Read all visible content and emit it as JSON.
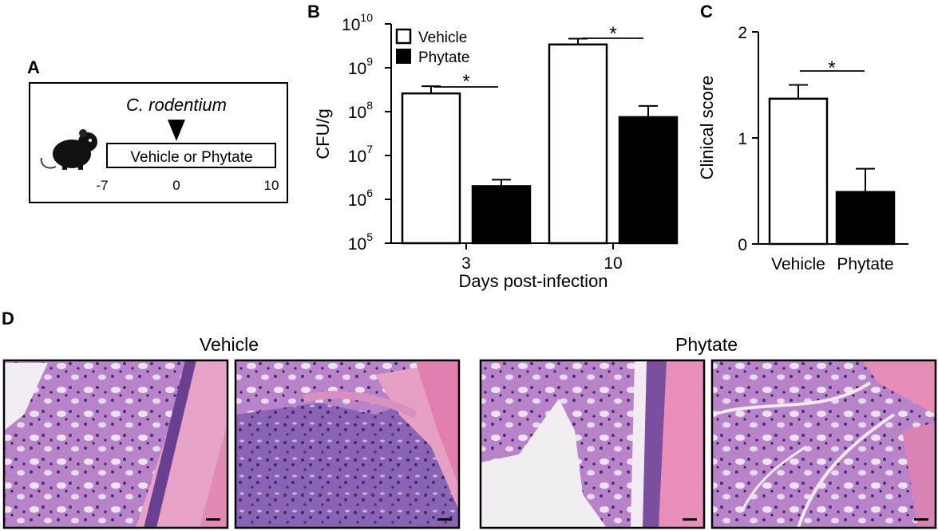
{
  "panel_labels": {
    "a": "A",
    "b": "B",
    "c": "C",
    "d": "D"
  },
  "schematic": {
    "agent": "C. rodentium",
    "treatment_label": "Vehicle or Phytate",
    "timeline_ticks": [
      "-7",
      "0",
      "10"
    ]
  },
  "micrograph_groups": [
    "Vehicle",
    "Phytate"
  ],
  "colors": {
    "vehicle_fill": "#ffffff",
    "phytate_fill": "#000000",
    "tissue_pink": "#e88ab6",
    "tissue_purple": "#7a4fa0"
  },
  "chart_data": [
    {
      "type": "bar",
      "panel": "B",
      "scale": "log",
      "categories": [
        "3",
        "10"
      ],
      "xlabel": "Days post-infection",
      "ylabel": "CFU/g",
      "ylim": [
        100000,
        10000000000
      ],
      "y_ticks": [
        {
          "base": "10",
          "exp": "5",
          "value": 100000
        },
        {
          "base": "10",
          "exp": "6",
          "value": 1000000
        },
        {
          "base": "10",
          "exp": "7",
          "value": 10000000
        },
        {
          "base": "10",
          "exp": "8",
          "value": 100000000
        },
        {
          "base": "10",
          "exp": "9",
          "value": 1000000000
        },
        {
          "base": "10",
          "exp": "10",
          "value": 10000000000
        }
      ],
      "series": [
        {
          "name": "Vehicle",
          "fill": "#ffffff",
          "values": [
            260000000,
            3400000000
          ],
          "error_upper": [
            380000000,
            4600000000
          ]
        },
        {
          "name": "Phytate",
          "fill": "#000000",
          "values": [
            2000000,
            75000000
          ],
          "error_upper": [
            2800000,
            135000000
          ]
        }
      ],
      "significance": [
        "*",
        "*"
      ],
      "legend_position": "top-left"
    },
    {
      "type": "bar",
      "panel": "C",
      "categories": [
        "Vehicle",
        "Phytate"
      ],
      "values": [
        1.37,
        0.49
      ],
      "error_upper": [
        1.5,
        0.71
      ],
      "fills": [
        "#ffffff",
        "#000000"
      ],
      "ylabel": "Clinical score",
      "ylim": [
        0,
        2
      ],
      "y_ticks": [
        "0",
        "1",
        "2"
      ],
      "significance": "*"
    }
  ]
}
